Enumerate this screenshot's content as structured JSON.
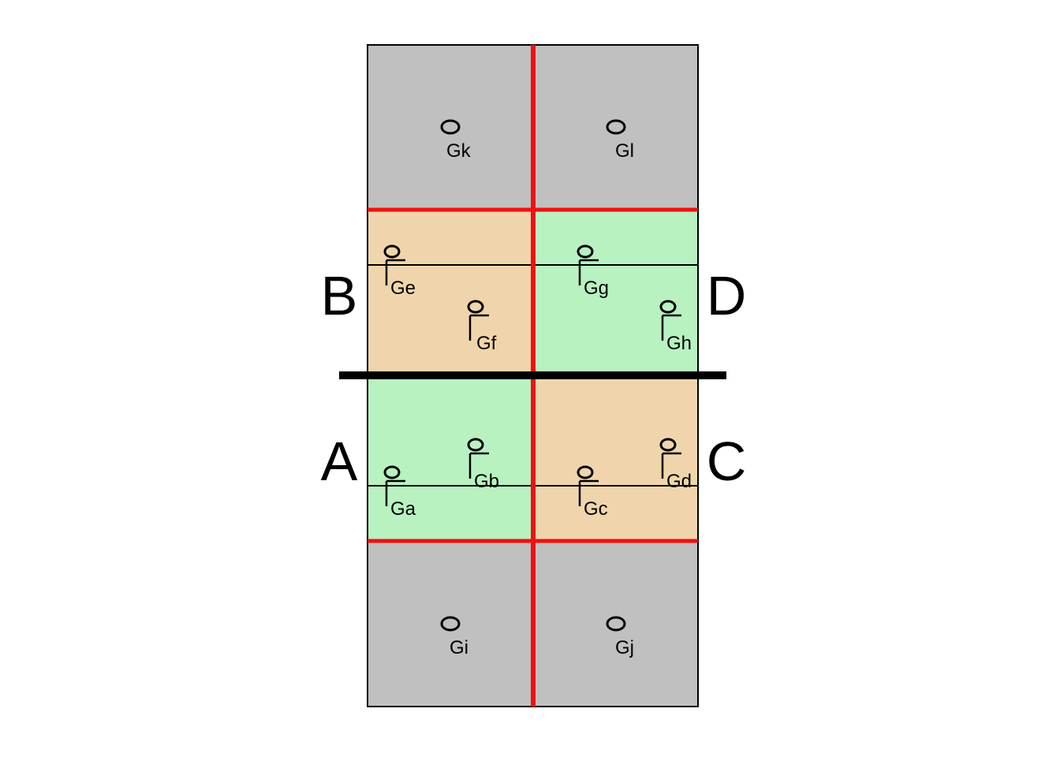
{
  "colors": {
    "gray": "#c0c0c0",
    "tan": "#f0d5ac",
    "green": "#b8f2c1",
    "red": "#ee1111",
    "black": "#000000"
  },
  "zones": {
    "top": "gray",
    "upper_left": "tan",
    "upper_right": "green",
    "lower_left": "green",
    "lower_right": "tan",
    "bottom": "gray"
  },
  "side_labels": {
    "b": "B",
    "d": "D",
    "a": "A",
    "c": "C"
  },
  "players": {
    "gk": {
      "label": "Gk",
      "icon": "player-standing-icon"
    },
    "gl": {
      "label": "Gl",
      "icon": "player-standing-icon"
    },
    "ge": {
      "label": "Ge",
      "icon": "player-with-stick-icon"
    },
    "gf": {
      "label": "Gf",
      "icon": "player-with-stick-icon"
    },
    "gg": {
      "label": "Gg",
      "icon": "player-with-stick-icon"
    },
    "gh": {
      "label": "Gh",
      "icon": "player-with-stick-icon"
    },
    "gb": {
      "label": "Gb",
      "icon": "player-with-stick-icon"
    },
    "gd": {
      "label": "Gd",
      "icon": "player-with-stick-icon"
    },
    "ga": {
      "label": "Ga",
      "icon": "player-with-stick-icon"
    },
    "gc": {
      "label": "Gc",
      "icon": "player-with-stick-icon"
    },
    "gi": {
      "label": "Gi",
      "icon": "player-standing-icon"
    },
    "gj": {
      "label": "Gj",
      "icon": "player-standing-icon"
    }
  }
}
